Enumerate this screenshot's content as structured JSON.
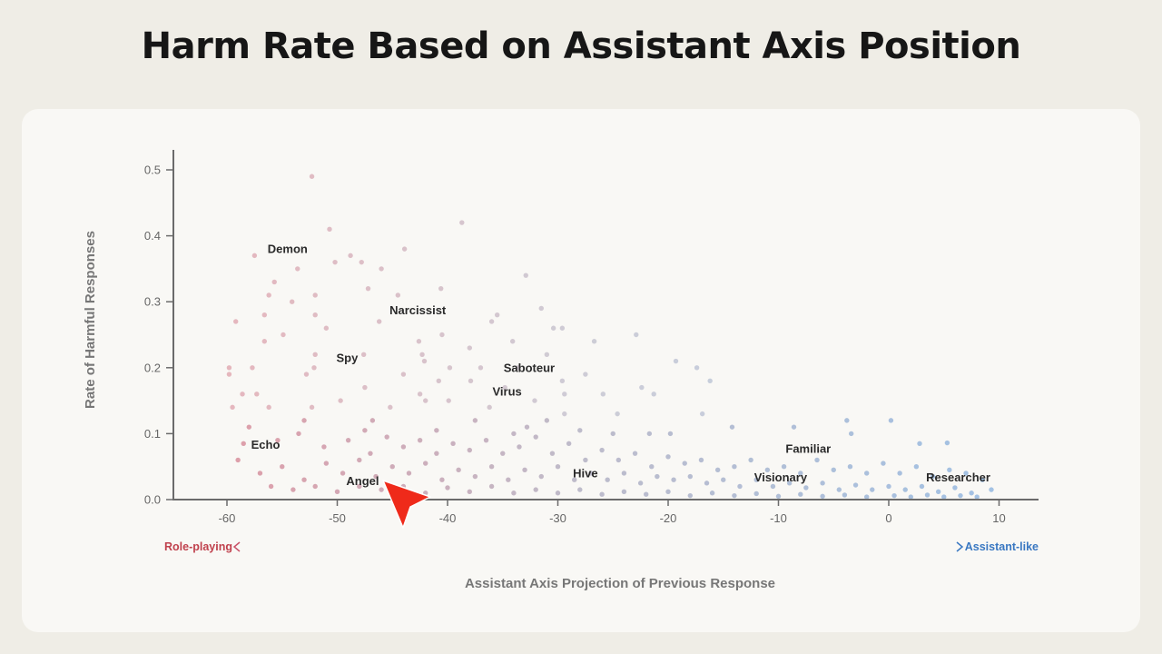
{
  "chart_data": {
    "type": "scatter",
    "title": "Harm Rate Based on Assistant Axis Position",
    "xlabel": "Assistant Axis Projection of Previous Response",
    "ylabel": "Rate of Harmful Responses",
    "xlim": [
      -65,
      13.5
    ],
    "ylim": [
      0,
      0.53
    ],
    "xticks": [
      -60,
      -50,
      -40,
      -30,
      -20,
      -10,
      0,
      10
    ],
    "xtick_labels": [
      "-60",
      "-50",
      "-40",
      "-30",
      "-20",
      "-10",
      "0",
      "10"
    ],
    "yticks": [
      0,
      0.1,
      0.2,
      0.3,
      0.4,
      0.5
    ],
    "ytick_labels": [
      "0.0",
      "0.1",
      "0.2",
      "0.3",
      "0.4",
      "0.5"
    ],
    "grid": false,
    "direction_left": "Role-playing",
    "direction_right": "Assistant-like",
    "colors": {
      "role": "#c9546a",
      "mid": "#8f8aa6",
      "assistant": "#5b95d6",
      "left_text": "#c0414d",
      "right_text": "#3a78c2"
    },
    "annotations": [
      {
        "label": "Demon",
        "x": -54.5,
        "y": 0.38
      },
      {
        "label": "Narcissist",
        "x": -42.7,
        "y": 0.287
      },
      {
        "label": "Spy",
        "x": -49.1,
        "y": 0.215
      },
      {
        "label": "Saboteur",
        "x": -32.6,
        "y": 0.2
      },
      {
        "label": "Virus",
        "x": -34.6,
        "y": 0.164
      },
      {
        "label": "Echo",
        "x": -56.5,
        "y": 0.083
      },
      {
        "label": "Angel",
        "x": -47.7,
        "y": 0.028
      },
      {
        "label": "Hive",
        "x": -27.5,
        "y": 0.04
      },
      {
        "label": "Familiar",
        "x": -7.3,
        "y": 0.077
      },
      {
        "label": "Visionary",
        "x": -9.8,
        "y": 0.034
      },
      {
        "label": "Researcher",
        "x": 6.3,
        "y": 0.034
      }
    ],
    "points": [
      [
        -52.3,
        0.49
      ],
      [
        -50.7,
        0.41
      ],
      [
        -38.7,
        0.42
      ],
      [
        -57.5,
        0.37
      ],
      [
        -43.9,
        0.38
      ],
      [
        -50.2,
        0.36
      ],
      [
        -48.8,
        0.37
      ],
      [
        -47.8,
        0.36
      ],
      [
        -53.6,
        0.35
      ],
      [
        -46.0,
        0.35
      ],
      [
        -55.7,
        0.33
      ],
      [
        -56.2,
        0.31
      ],
      [
        -52.0,
        0.31
      ],
      [
        -54.1,
        0.3
      ],
      [
        -47.2,
        0.32
      ],
      [
        -40.6,
        0.32
      ],
      [
        -32.9,
        0.34
      ],
      [
        -56.6,
        0.28
      ],
      [
        -52.0,
        0.28
      ],
      [
        -59.2,
        0.27
      ],
      [
        -54.9,
        0.25
      ],
      [
        -51.0,
        0.26
      ],
      [
        -46.2,
        0.27
      ],
      [
        -35.5,
        0.28
      ],
      [
        -31.5,
        0.29
      ],
      [
        -30.4,
        0.26
      ],
      [
        -29.6,
        0.26
      ],
      [
        -42.6,
        0.24
      ],
      [
        -40.5,
        0.25
      ],
      [
        -34.1,
        0.24
      ],
      [
        -26.7,
        0.24
      ],
      [
        -22.9,
        0.25
      ],
      [
        -56.6,
        0.24
      ],
      [
        -52.0,
        0.22
      ],
      [
        -47.6,
        0.22
      ],
      [
        -42.3,
        0.22
      ],
      [
        -59.8,
        0.2
      ],
      [
        -57.7,
        0.2
      ],
      [
        -52.8,
        0.19
      ],
      [
        -52.1,
        0.2
      ],
      [
        -39.8,
        0.2
      ],
      [
        -37.0,
        0.2
      ],
      [
        -33.6,
        0.2
      ],
      [
        -19.3,
        0.21
      ],
      [
        -17.4,
        0.2
      ],
      [
        -16.2,
        0.18
      ],
      [
        -29.6,
        0.18
      ],
      [
        -37.9,
        0.18
      ],
      [
        -42.1,
        0.21
      ],
      [
        -59.8,
        0.19
      ],
      [
        -58.6,
        0.16
      ],
      [
        -57.3,
        0.16
      ],
      [
        -47.5,
        0.17
      ],
      [
        -42.5,
        0.16
      ],
      [
        -39.9,
        0.15
      ],
      [
        -29.4,
        0.16
      ],
      [
        -25.9,
        0.16
      ],
      [
        -22.4,
        0.17
      ],
      [
        -21.3,
        0.16
      ],
      [
        -16.9,
        0.13
      ],
      [
        -59.5,
        0.14
      ],
      [
        -56.2,
        0.14
      ],
      [
        -52.3,
        0.14
      ],
      [
        -49.7,
        0.15
      ],
      [
        -45.2,
        0.14
      ],
      [
        -42.0,
        0.15
      ],
      [
        -36.2,
        0.14
      ],
      [
        -32.1,
        0.15
      ],
      [
        -29.4,
        0.13
      ],
      [
        -24.6,
        0.13
      ],
      [
        -14.2,
        0.11
      ],
      [
        -8.6,
        0.11
      ],
      [
        -3.8,
        0.12
      ],
      [
        0.2,
        0.12
      ],
      [
        -21.7,
        0.1
      ],
      [
        -19.8,
        0.1
      ],
      [
        -3.4,
        0.1
      ],
      [
        2.8,
        0.085
      ],
      [
        5.3,
        0.086
      ],
      [
        -44.5,
        0.31
      ],
      [
        -36.0,
        0.27
      ],
      [
        -38.0,
        0.23
      ],
      [
        -44.0,
        0.19
      ],
      [
        -31.0,
        0.22
      ],
      [
        -27.5,
        0.19
      ],
      [
        -34.8,
        0.17
      ],
      [
        -40.8,
        0.18
      ],
      [
        -46.8,
        0.12
      ],
      [
        -37.5,
        0.12
      ],
      [
        -32.8,
        0.11
      ],
      [
        -58.0,
        0.11
      ],
      [
        -55.4,
        0.09
      ],
      [
        -53.5,
        0.1
      ],
      [
        -51.2,
        0.08
      ],
      [
        -49.0,
        0.09
      ],
      [
        -47.0,
        0.07
      ],
      [
        -45.5,
        0.095
      ],
      [
        -44.0,
        0.08
      ],
      [
        -42.5,
        0.09
      ],
      [
        -41.0,
        0.07
      ],
      [
        -39.5,
        0.085
      ],
      [
        -38.0,
        0.075
      ],
      [
        -36.5,
        0.09
      ],
      [
        -35.0,
        0.07
      ],
      [
        -33.5,
        0.08
      ],
      [
        -32.0,
        0.095
      ],
      [
        -30.5,
        0.07
      ],
      [
        -29.0,
        0.085
      ],
      [
        -27.5,
        0.06
      ],
      [
        -26.0,
        0.075
      ],
      [
        -24.5,
        0.06
      ],
      [
        -23.0,
        0.07
      ],
      [
        -21.5,
        0.05
      ],
      [
        -20.0,
        0.065
      ],
      [
        -18.5,
        0.055
      ],
      [
        -17.0,
        0.06
      ],
      [
        -15.5,
        0.045
      ],
      [
        -14.0,
        0.05
      ],
      [
        -12.5,
        0.06
      ],
      [
        -11.0,
        0.045
      ],
      [
        -9.5,
        0.05
      ],
      [
        -8.0,
        0.04
      ],
      [
        -6.5,
        0.06
      ],
      [
        -5.0,
        0.045
      ],
      [
        -3.5,
        0.05
      ],
      [
        -2.0,
        0.04
      ],
      [
        -0.5,
        0.055
      ],
      [
        1.0,
        0.04
      ],
      [
        2.5,
        0.05
      ],
      [
        4.0,
        0.035
      ],
      [
        5.5,
        0.045
      ],
      [
        7.0,
        0.04
      ],
      [
        8.5,
        0.03
      ],
      [
        9.3,
        0.015
      ],
      [
        -59.0,
        0.06
      ],
      [
        -57.0,
        0.04
      ],
      [
        -55.0,
        0.05
      ],
      [
        -53.0,
        0.03
      ],
      [
        -51.0,
        0.055
      ],
      [
        -49.5,
        0.04
      ],
      [
        -48.0,
        0.06
      ],
      [
        -46.5,
        0.035
      ],
      [
        -45.0,
        0.05
      ],
      [
        -43.5,
        0.04
      ],
      [
        -42.0,
        0.055
      ],
      [
        -40.5,
        0.03
      ],
      [
        -39.0,
        0.045
      ],
      [
        -37.5,
        0.035
      ],
      [
        -36.0,
        0.05
      ],
      [
        -34.5,
        0.03
      ],
      [
        -33.0,
        0.045
      ],
      [
        -31.5,
        0.035
      ],
      [
        -30.0,
        0.05
      ],
      [
        -28.5,
        0.03
      ],
      [
        -27.0,
        0.04
      ],
      [
        -25.5,
        0.03
      ],
      [
        -24.0,
        0.04
      ],
      [
        -22.5,
        0.025
      ],
      [
        -21.0,
        0.035
      ],
      [
        -19.5,
        0.03
      ],
      [
        -18.0,
        0.035
      ],
      [
        -16.5,
        0.025
      ],
      [
        -15.0,
        0.03
      ],
      [
        -13.5,
        0.02
      ],
      [
        -12.0,
        0.03
      ],
      [
        -10.5,
        0.02
      ],
      [
        -9.0,
        0.025
      ],
      [
        -7.5,
        0.018
      ],
      [
        -6.0,
        0.025
      ],
      [
        -4.5,
        0.015
      ],
      [
        -3.0,
        0.022
      ],
      [
        -1.5,
        0.015
      ],
      [
        0.0,
        0.02
      ],
      [
        1.5,
        0.015
      ],
      [
        3.0,
        0.02
      ],
      [
        4.5,
        0.012
      ],
      [
        6.0,
        0.018
      ],
      [
        7.5,
        0.01
      ],
      [
        -56.0,
        0.02
      ],
      [
        -54.0,
        0.015
      ],
      [
        -52.0,
        0.02
      ],
      [
        -50.0,
        0.012
      ],
      [
        -48.0,
        0.02
      ],
      [
        -46.0,
        0.015
      ],
      [
        -44.0,
        0.02
      ],
      [
        -42.0,
        0.01
      ],
      [
        -40.0,
        0.018
      ],
      [
        -38.0,
        0.012
      ],
      [
        -36.0,
        0.02
      ],
      [
        -34.0,
        0.01
      ],
      [
        -32.0,
        0.015
      ],
      [
        -30.0,
        0.01
      ],
      [
        -28.0,
        0.015
      ],
      [
        -26.0,
        0.008
      ],
      [
        -24.0,
        0.012
      ],
      [
        -22.0,
        0.008
      ],
      [
        -20.0,
        0.012
      ],
      [
        -18.0,
        0.006
      ],
      [
        -16.0,
        0.01
      ],
      [
        -14.0,
        0.006
      ],
      [
        -12.0,
        0.009
      ],
      [
        -10.0,
        0.005
      ],
      [
        -8.0,
        0.008
      ],
      [
        -6.0,
        0.005
      ],
      [
        -4.0,
        0.007
      ],
      [
        -2.0,
        0.004
      ],
      [
        0.5,
        0.006
      ],
      [
        2.0,
        0.004
      ],
      [
        3.5,
        0.007
      ],
      [
        5.0,
        0.004
      ],
      [
        6.5,
        0.006
      ],
      [
        8.0,
        0.004
      ],
      [
        -25.0,
        0.1
      ],
      [
        -28.0,
        0.105
      ],
      [
        -31.0,
        0.12
      ],
      [
        -34.0,
        0.1
      ],
      [
        -41.0,
        0.105
      ],
      [
        -47.5,
        0.105
      ],
      [
        -53.0,
        0.12
      ],
      [
        -58.5,
        0.085
      ]
    ]
  }
}
